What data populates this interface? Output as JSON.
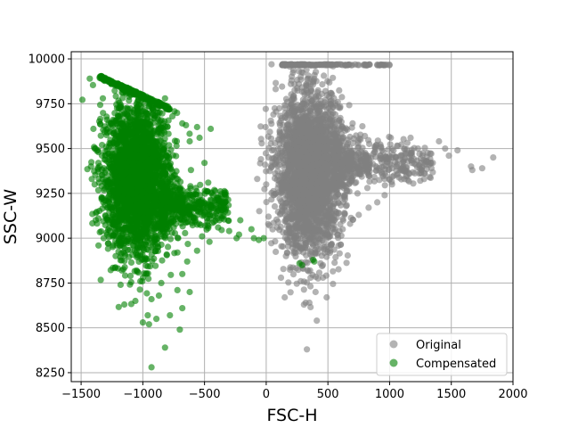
{
  "chart_data": {
    "type": "scatter",
    "title": "",
    "xlabel": "FSC-H",
    "ylabel": "SSC-W",
    "xlim": [
      -1580,
      2000
    ],
    "ylim": [
      8200,
      10040
    ],
    "xticks": [
      -1500,
      -1000,
      -500,
      0,
      500,
      1000,
      1500,
      2000
    ],
    "xtick_labels": [
      "−1500",
      "−1000",
      "−500",
      "0",
      "500",
      "1000",
      "1500",
      "2000"
    ],
    "yticks": [
      8250,
      8500,
      8750,
      9000,
      9250,
      9500,
      9750,
      10000
    ],
    "ytick_labels": [
      "8250",
      "8500",
      "8750",
      "9000",
      "9250",
      "9500",
      "9750",
      "10000"
    ],
    "grid": true,
    "legend_position": "lower right",
    "series": [
      {
        "name": "Original",
        "color": "#808080",
        "cluster": {
          "core": {
            "x_mean": 350,
            "x_sd": 130,
            "y_mean": 9360,
            "y_sd": 220,
            "count": 2600
          },
          "tail_right": {
            "x_range": [
              550,
              1350
            ],
            "y_mean": 9420,
            "y_sd": 90,
            "count": 450
          },
          "top_cap": {
            "x_range": [
              130,
              1000
            ],
            "y": 9970,
            "count": 160
          }
        },
        "points": [
          [
            1660,
            9400
          ],
          [
            1670,
            9380
          ],
          [
            1750,
            9390
          ],
          [
            1840,
            9450
          ],
          [
            1550,
            9490
          ],
          [
            1450,
            9500
          ],
          [
            1400,
            9540
          ],
          [
            1480,
            9460
          ],
          [
            1350,
            9420
          ],
          [
            1300,
            9430
          ],
          [
            1170,
            9560
          ],
          [
            1230,
            9500
          ],
          [
            1100,
            9460
          ],
          [
            1120,
            9330
          ],
          [
            1280,
            9330
          ],
          [
            1020,
            9300
          ],
          [
            960,
            9240
          ],
          [
            900,
            9200
          ],
          [
            830,
            9170
          ],
          [
            750,
            9130
          ],
          [
            740,
            9250
          ],
          [
            820,
            9280
          ],
          [
            680,
            9080
          ],
          [
            620,
            9050
          ],
          [
            580,
            9020
          ],
          [
            520,
            8930
          ],
          [
            440,
            8860
          ],
          [
            460,
            8780
          ],
          [
            400,
            8700
          ],
          [
            320,
            8640
          ],
          [
            350,
            8640
          ],
          [
            490,
            8670
          ],
          [
            410,
            8540
          ],
          [
            330,
            8380
          ],
          [
            470,
            8950
          ],
          [
            560,
            9050
          ],
          [
            280,
            8760
          ],
          [
            150,
            8670
          ],
          [
            120,
            8780
          ],
          [
            160,
            8900
          ],
          [
            240,
            8960
          ],
          [
            100,
            9300
          ],
          [
            110,
            9600
          ],
          [
            170,
            9760
          ],
          [
            200,
            9860
          ],
          [
            280,
            9900
          ],
          [
            380,
            9870
          ],
          [
            480,
            9820
          ],
          [
            580,
            9760
          ],
          [
            700,
            9640
          ],
          [
            800,
            9570
          ],
          [
            880,
            9510
          ],
          [
            950,
            9480
          ],
          [
            1010,
            9560
          ],
          [
            -5,
            9620
          ],
          [
            -10,
            9410
          ],
          [
            0,
            9300
          ],
          [
            60,
            9240
          ],
          [
            90,
            9060
          ],
          [
            520,
            9600
          ],
          [
            300,
            9500
          ],
          [
            330,
            9430
          ],
          [
            420,
            9380
          ],
          [
            380,
            9260
          ],
          [
            270,
            9210
          ],
          [
            210,
            9130
          ],
          [
            320,
            9060
          ],
          [
            450,
            9200
          ],
          [
            520,
            9300
          ],
          [
            600,
            9350
          ],
          [
            660,
            9420
          ],
          [
            700,
            9470
          ],
          [
            480,
            9510
          ],
          [
            360,
            9580
          ],
          [
            250,
            9660
          ],
          [
            420,
            9700
          ],
          [
            560,
            9690
          ],
          [
            640,
            9600
          ],
          [
            180,
            9380
          ],
          [
            130,
            9480
          ]
        ]
      },
      {
        "name": "Compensated",
        "color": "#008000",
        "cluster": {
          "core": {
            "x_mean": -1050,
            "x_sd": 130,
            "y_mean": 9330,
            "y_sd": 210,
            "count": 2600
          },
          "tail_right": {
            "x_range": [
              -850,
              -300
            ],
            "y_mean": 9170,
            "y_sd": 80,
            "count": 450
          },
          "top_edge": {
            "x_range": [
              -1350,
              -780
            ],
            "y_at_left": 9910,
            "y_at_right": 9730,
            "count": 220
          }
        },
        "points": [
          [
            -1430,
            9890
          ],
          [
            -1400,
            9610
          ],
          [
            -1420,
            9400
          ],
          [
            -1390,
            9300
          ],
          [
            -1360,
            9110
          ],
          [
            -1290,
            9020
          ],
          [
            -1240,
            8960
          ],
          [
            -1220,
            8900
          ],
          [
            -1170,
            8820
          ],
          [
            -1180,
            8740
          ],
          [
            -1150,
            8630
          ],
          [
            -1060,
            8650
          ],
          [
            -960,
            8570
          ],
          [
            -930,
            8660
          ],
          [
            -1000,
            8530
          ],
          [
            -950,
            8520
          ],
          [
            -890,
            8550
          ],
          [
            -780,
            8570
          ],
          [
            -700,
            8490
          ],
          [
            -820,
            8390
          ],
          [
            -930,
            8280
          ],
          [
            -680,
            8610
          ],
          [
            -620,
            8700
          ],
          [
            -720,
            8710
          ],
          [
            -870,
            8680
          ],
          [
            -850,
            8750
          ],
          [
            -1020,
            8760
          ],
          [
            -1100,
            8790
          ],
          [
            -540,
            9560
          ],
          [
            -470,
            9310
          ],
          [
            -450,
            9180
          ],
          [
            -380,
            9100
          ],
          [
            -300,
            9040
          ],
          [
            -240,
            9000
          ],
          [
            -210,
            9100
          ],
          [
            -120,
            9050
          ],
          [
            -100,
            9000
          ],
          [
            -60,
            8990
          ],
          [
            -20,
            9000
          ],
          [
            -220,
            9020
          ],
          [
            -390,
            9060
          ],
          [
            -460,
            8980
          ],
          [
            -520,
            9010
          ],
          [
            -560,
            8930
          ],
          [
            -640,
            8870
          ],
          [
            -680,
            8800
          ],
          [
            -720,
            8920
          ],
          [
            -680,
            9640
          ],
          [
            -650,
            9630
          ],
          [
            -620,
            9540
          ],
          [
            -560,
            9620
          ],
          [
            -450,
            9610
          ],
          [
            -500,
            9420
          ],
          [
            -610,
            9380
          ],
          [
            -430,
            9240
          ],
          [
            -820,
            9780
          ],
          [
            -760,
            9680
          ],
          [
            -880,
            9700
          ],
          [
            -960,
            9640
          ],
          [
            -1120,
            9720
          ],
          [
            -1250,
            9640
          ],
          [
            -1330,
            9520
          ],
          [
            -1360,
            9420
          ],
          [
            -1390,
            9500
          ],
          [
            -1320,
            9200
          ],
          [
            -1280,
            9100
          ],
          [
            -1200,
            9250
          ],
          [
            -1150,
            9450
          ],
          [
            -1000,
            9540
          ],
          [
            -900,
            9420
          ],
          [
            -800,
            9330
          ],
          [
            -720,
            9270
          ],
          [
            -620,
            9200
          ],
          [
            -560,
            9160
          ],
          [
            -1060,
            9150
          ],
          [
            -980,
            9030
          ],
          [
            -880,
            8970
          ],
          [
            -1120,
            9000
          ],
          [
            -1200,
            9100
          ],
          [
            -1010,
            8880
          ],
          [
            390,
            8870
          ],
          [
            380,
            8880
          ],
          [
            270,
            8860
          ],
          [
            290,
            8850
          ]
        ]
      }
    ]
  }
}
